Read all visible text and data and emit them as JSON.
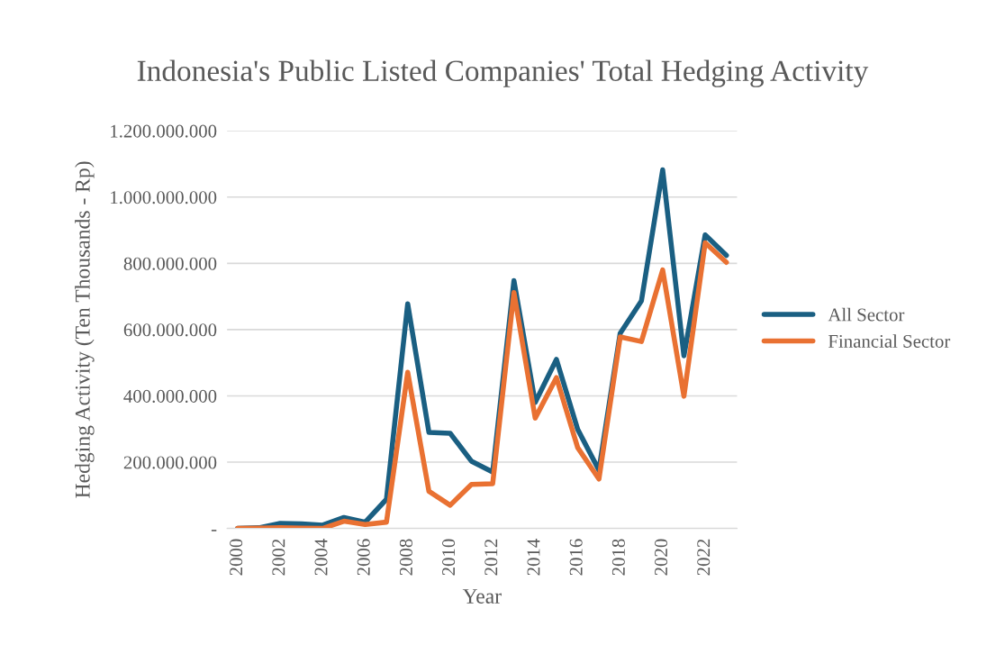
{
  "chart_data": {
    "type": "line",
    "title": "Indonesia's Public Listed Companies' Total Hedging Activity",
    "xlabel": "Year",
    "ylabel": "Hedging Activity (Ten Thousands - Rp)",
    "x": [
      2000,
      2001,
      2002,
      2003,
      2004,
      2005,
      2006,
      2007,
      2008,
      2009,
      2010,
      2011,
      2012,
      2013,
      2014,
      2015,
      2016,
      2017,
      2018,
      2019,
      2020,
      2021,
      2022,
      2023
    ],
    "series": [
      {
        "name": "All Sector",
        "color": "#1a5f82",
        "values": [
          0,
          2000000,
          15000000,
          14000000,
          10000000,
          33000000,
          19000000,
          88000000,
          678000000,
          290000000,
          287000000,
          203000000,
          170000000,
          748000000,
          380000000,
          510000000,
          299000000,
          176000000,
          589000000,
          687000000,
          1082000000,
          521000000,
          886000000,
          824000000
        ]
      },
      {
        "name": "Financial Sector",
        "color": "#e97132",
        "values": [
          0,
          1000000,
          2000000,
          1000000,
          0,
          22000000,
          12000000,
          19000000,
          471000000,
          112000000,
          70000000,
          133000000,
          135000000,
          712000000,
          333000000,
          455000000,
          244000000,
          149000000,
          578000000,
          564000000,
          780000000,
          399000000,
          862000000,
          803000000
        ]
      }
    ],
    "xlim": [
      1999.5,
      2023.5
    ],
    "xticks": [
      2000,
      2002,
      2004,
      2006,
      2008,
      2010,
      2012,
      2014,
      2016,
      2018,
      2020,
      2022
    ],
    "ylim": [
      0,
      1200000000
    ],
    "yticks": [
      {
        "value": 0,
        "label": "-"
      },
      {
        "value": 200000000,
        "label": "200.000.000"
      },
      {
        "value": 400000000,
        "label": "400.000.000"
      },
      {
        "value": 600000000,
        "label": "600.000.000"
      },
      {
        "value": 800000000,
        "label": "800.000.000"
      },
      {
        "value": 1000000000,
        "label": "1.000.000.000"
      },
      {
        "value": 1200000000,
        "label": "1.200.000.000"
      }
    ],
    "grid": "y",
    "legend": "right",
    "marker": "none",
    "line_style": "solid"
  }
}
